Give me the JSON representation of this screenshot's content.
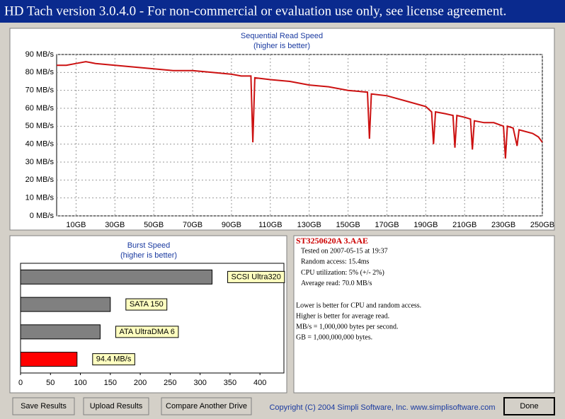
{
  "window": {
    "title": "HD Tach version 3.0.4.0  - For non-commercial or evaluation use only, see license agreement."
  },
  "chart_data": [
    {
      "type": "line",
      "title": "Sequential Read Speed",
      "subtitle": "(higher is better)",
      "x": [
        0,
        5,
        10,
        15,
        20,
        30,
        40,
        50,
        60,
        70,
        80,
        90,
        95,
        100,
        101,
        102,
        110,
        120,
        130,
        140,
        150,
        160,
        161,
        162,
        170,
        180,
        190,
        193,
        194,
        195,
        200,
        204,
        205,
        206,
        210,
        213,
        214,
        215,
        220,
        225,
        230,
        231,
        232,
        235,
        237,
        238,
        245,
        248,
        250
      ],
      "values": [
        84,
        84,
        85,
        86,
        85,
        84,
        83,
        82,
        81,
        81,
        80,
        79,
        78,
        78,
        41,
        77,
        76,
        75,
        73,
        72,
        70,
        69,
        43,
        68,
        67,
        64,
        61,
        58,
        40,
        58,
        57,
        56,
        38,
        56,
        55,
        54,
        37,
        53,
        52,
        52,
        50,
        32,
        50,
        49,
        39,
        48,
        46,
        44,
        41
      ],
      "color": "#cc1111",
      "xlim": [
        0,
        250
      ],
      "ylim": [
        0,
        90
      ],
      "xticks": [
        {
          "value": 10,
          "label": "10GB"
        },
        {
          "value": 30,
          "label": "30GB"
        },
        {
          "value": 50,
          "label": "50GB"
        },
        {
          "value": 70,
          "label": "70GB"
        },
        {
          "value": 90,
          "label": "90GB"
        },
        {
          "value": 110,
          "label": "110GB"
        },
        {
          "value": 130,
          "label": "130GB"
        },
        {
          "value": 150,
          "label": "150GB"
        },
        {
          "value": 170,
          "label": "170GB"
        },
        {
          "value": 190,
          "label": "190GB"
        },
        {
          "value": 210,
          "label": "210GB"
        },
        {
          "value": 230,
          "label": "230GB"
        },
        {
          "value": 250,
          "label": "250GB"
        }
      ],
      "yticks": [
        {
          "value": 0,
          "label": "0 MB/s"
        },
        {
          "value": 10,
          "label": "10 MB/s"
        },
        {
          "value": 20,
          "label": "20 MB/s"
        },
        {
          "value": 30,
          "label": "30 MB/s"
        },
        {
          "value": 40,
          "label": "40 MB/s"
        },
        {
          "value": 50,
          "label": "50 MB/s"
        },
        {
          "value": 60,
          "label": "60 MB/s"
        },
        {
          "value": 70,
          "label": "70 MB/s"
        },
        {
          "value": 80,
          "label": "80 MB/s"
        },
        {
          "value": 90,
          "label": "90 MB/s"
        }
      ],
      "grid": true
    },
    {
      "type": "bar",
      "orientation": "horizontal",
      "title": "Burst Speed",
      "subtitle": "(higher is better)",
      "categories": [
        "SCSI Ultra320",
        "SATA 150",
        "ATA UltraDMA 6",
        null
      ],
      "values": [
        320,
        150,
        133,
        94.4
      ],
      "value_labels": [
        null,
        null,
        null,
        "94.4 MB/s"
      ],
      "colors": [
        "#808080",
        "#808080",
        "#808080",
        "#ff0000"
      ],
      "xlim": [
        0,
        440
      ],
      "xticks": [
        0,
        50,
        100,
        150,
        200,
        250,
        300,
        350,
        400
      ],
      "grid": false
    }
  ],
  "info": {
    "drive": "ST3250620A 3.AAE",
    "details": [
      "Tested on 2007-05-15 at 19:37",
      "Random access: 15.4ms",
      "CPU utilization: 5% (+/- 2%)",
      "Average read: 70.0 MB/s"
    ],
    "notes": [
      "Lower is better for CPU and random access.",
      "Higher is better for average read.",
      "MB/s = 1,000,000 bytes per second.",
      "GB = 1,000,000,000 bytes."
    ]
  },
  "buttons": [
    "Save Results",
    "Upload Results",
    "Compare Another Drive",
    "Done"
  ],
  "copyright": "Copyright (C) 2004 Simpli Software, Inc. www.simplisoftware.com"
}
